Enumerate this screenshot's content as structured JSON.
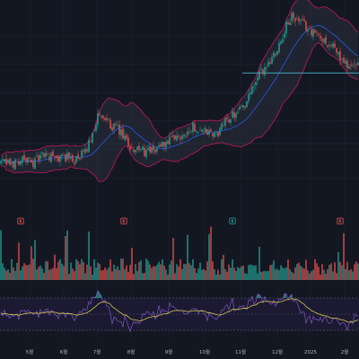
{
  "colors": {
    "background": "#131722",
    "grid": "#1f2330",
    "candle_up": "#26a69a",
    "candle_down": "#ef5350",
    "bb_band": "#c2185b",
    "bb_fill": "#2a2f3d",
    "bb_basis": "#2962ff",
    "vol_up": "#26a69a",
    "vol_down": "#ef5350",
    "rsi_band_fill": "#1c1a33",
    "rsi_band_border": "#6b6f85",
    "rsi_line": "#7e57c2",
    "rsi_ma": "#d4c74a",
    "rsi_overbought_fill": "#26a69a",
    "rsi_oversold_fill": "#ef5350",
    "level_line": "#4dd0e1",
    "marker_red": "#ef5350",
    "marker_green": "#26a69a",
    "axis_text": "#b2b5be"
  },
  "x_axis": {
    "ticks": [
      "5월",
      "6월",
      "7월",
      "8월",
      "9월",
      "10월",
      "11월",
      "12월",
      "2025",
      "2월"
    ]
  },
  "markers": [
    {
      "label": "E",
      "type": "red"
    },
    {
      "label": "E",
      "type": "red"
    },
    {
      "label": "E",
      "type": "green"
    },
    {
      "label": "E",
      "type": "red"
    }
  ],
  "chart_data": [
    {
      "type": "candlestick",
      "panel": "price",
      "indicators": [
        "bollinger_bands"
      ],
      "y_range": [
        0,
        100
      ],
      "price_path": [
        [
          0,
          22
        ],
        [
          3,
          21
        ],
        [
          6,
          24
        ],
        [
          9,
          22
        ],
        [
          12,
          26
        ],
        [
          15,
          24
        ],
        [
          18,
          25
        ],
        [
          21,
          23
        ],
        [
          24,
          28
        ],
        [
          27,
          45
        ],
        [
          30,
          42
        ],
        [
          33,
          38
        ],
        [
          36,
          30
        ],
        [
          39,
          28
        ],
        [
          42,
          27
        ],
        [
          45,
          31
        ],
        [
          48,
          33
        ],
        [
          51,
          36
        ],
        [
          54,
          40
        ],
        [
          57,
          38
        ],
        [
          60,
          35
        ],
        [
          63,
          43
        ],
        [
          66,
          48
        ],
        [
          69,
          53
        ],
        [
          72,
          65
        ],
        [
          75,
          72
        ],
        [
          78,
          82
        ],
        [
          81,
          95
        ],
        [
          84,
          92
        ],
        [
          87,
          88
        ],
        [
          90,
          84
        ],
        [
          93,
          80
        ],
        [
          96,
          72
        ],
        [
          99,
          70
        ]
      ],
      "horizontal_level": 67,
      "grid": true
    },
    {
      "type": "bar",
      "panel": "volume",
      "count": 200,
      "grid": false
    },
    {
      "type": "line",
      "panel": "rsi",
      "band": [
        30,
        70
      ],
      "series_count": 2,
      "grid": false
    }
  ]
}
